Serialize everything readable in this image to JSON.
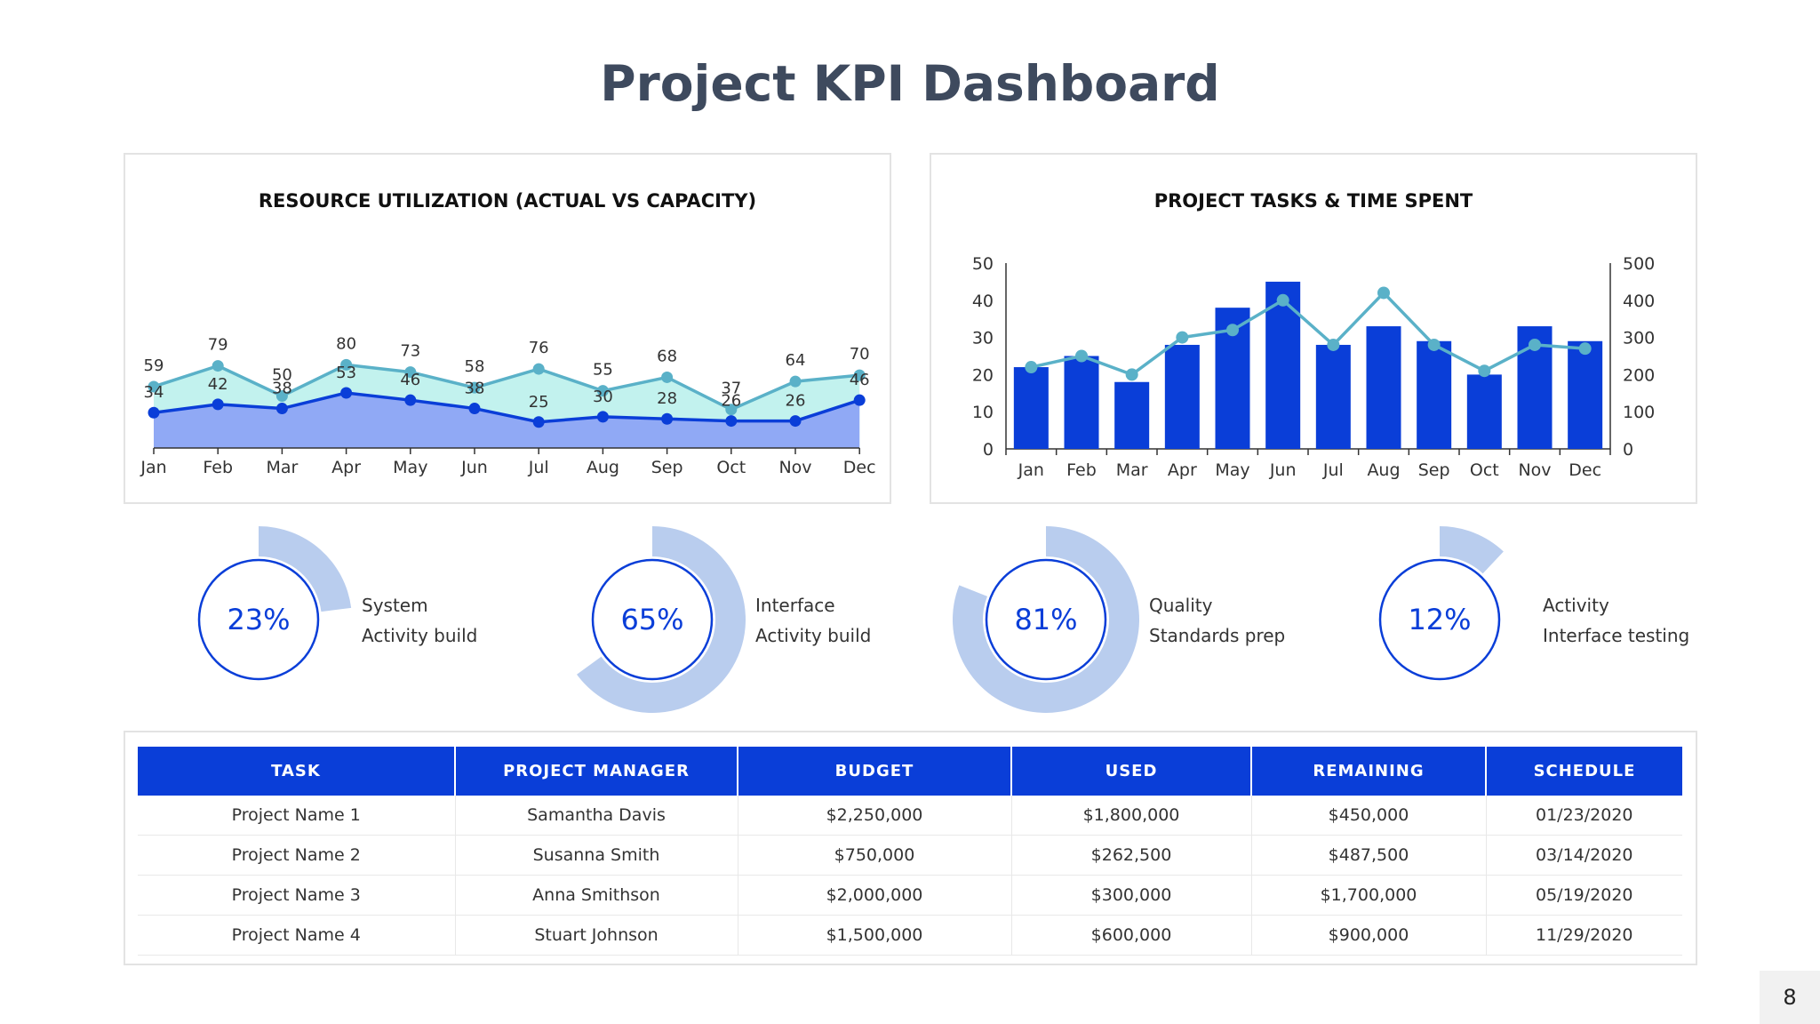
{
  "page_title": "Project KPI Dashboard",
  "page_number": "8",
  "colors": {
    "navy": "#0a3ed8",
    "teal": "#5ab1c8",
    "teal_fill": "#c2f2ee",
    "blue_fill": "#90a9f5",
    "ring_fill": "#b9cdee",
    "title": "#3e4a5e"
  },
  "chart_data": [
    {
      "type": "area",
      "title": "RESOURCE UTILIZATION (ACTUAL VS CAPACITY)",
      "categories": [
        "Jan",
        "Feb",
        "Mar",
        "Apr",
        "May",
        "Jun",
        "Jul",
        "Aug",
        "Sep",
        "Oct",
        "Nov",
        "Dec"
      ],
      "series": [
        {
          "values": [
            59,
            79,
            50,
            80,
            73,
            58,
            76,
            55,
            68,
            37,
            64,
            70
          ]
        },
        {
          "values": [
            34,
            42,
            38,
            53,
            46,
            38,
            25,
            30,
            28,
            26,
            26,
            46
          ]
        }
      ],
      "grid": false,
      "legend": "none"
    },
    {
      "type": "bar",
      "title": "PROJECT TASKS & TIME SPENT",
      "categories": [
        "Jan",
        "Feb",
        "Mar",
        "Apr",
        "May",
        "Jun",
        "Jul",
        "Aug",
        "Sep",
        "Oct",
        "Nov",
        "Dec"
      ],
      "left_ticks": [
        "0",
        "10",
        "20",
        "30",
        "40",
        "50"
      ],
      "right_ticks": [
        "0",
        "100",
        "200",
        "300",
        "400",
        "500"
      ],
      "ylim_left": [
        0,
        50
      ],
      "ylim_right": [
        0,
        500
      ],
      "series": [
        {
          "type": "bar",
          "axis": "left",
          "values": [
            22,
            25,
            18,
            28,
            38,
            45,
            28,
            33,
            29,
            20,
            33,
            29
          ]
        },
        {
          "type": "line",
          "axis": "right",
          "values": [
            220,
            250,
            200,
            300,
            320,
            400,
            280,
            420,
            280,
            210,
            280,
            270
          ]
        }
      ],
      "grid": false,
      "legend": "none"
    }
  ],
  "kpis": [
    {
      "percent": 23,
      "label": "23%",
      "line1": "System",
      "line2": "Activity build"
    },
    {
      "percent": 65,
      "label": "65%",
      "line1": "Interface",
      "line2": "Activity build"
    },
    {
      "percent": 81,
      "label": "81%",
      "line1": "Quality",
      "line2": "Standards prep"
    },
    {
      "percent": 12,
      "label": "12%",
      "line1": "Activity",
      "line2": "Interface testing"
    }
  ],
  "table": {
    "headers": [
      "TASK",
      "PROJECT MANAGER",
      "BUDGET",
      "USED",
      "REMAINING",
      "SCHEDULE"
    ],
    "rows": [
      [
        "Project Name 1",
        "Samantha Davis",
        "$2,250,000",
        "$1,800,000",
        "$450,000",
        "01/23/2020"
      ],
      [
        "Project Name 2",
        "Susanna Smith",
        "$750,000",
        "$262,500",
        "$487,500",
        "03/14/2020"
      ],
      [
        "Project Name 3",
        "Anna Smithson",
        "$2,000,000",
        "$300,000",
        "$1,700,000",
        "05/19/2020"
      ],
      [
        "Project Name 4",
        "Stuart Johnson",
        "$1,500,000",
        "$600,000",
        "$900,000",
        "11/29/2020"
      ]
    ]
  }
}
